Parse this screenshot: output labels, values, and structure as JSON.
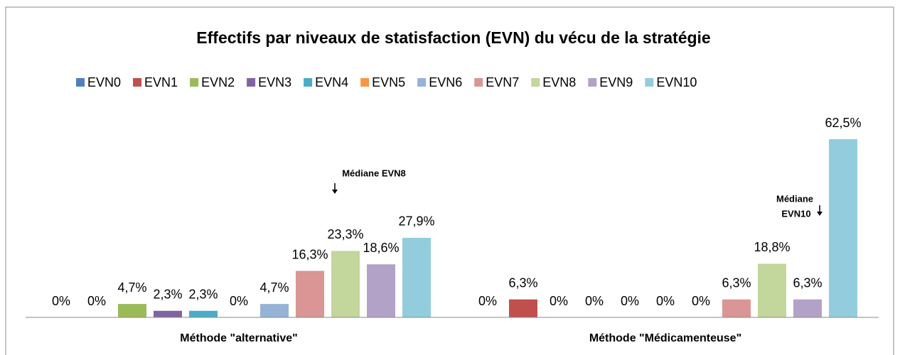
{
  "chart_data": {
    "type": "bar",
    "title": "Effectifs par niveaux de statisfaction (EVN) du vécu de la stratégie",
    "categories": [
      "Méthode \"alternative\"",
      "Méthode \"Médicamenteuse\""
    ],
    "series": [
      {
        "name": "EVN0",
        "color": "#4f81bd",
        "values": [
          0,
          0
        ],
        "value_labels": [
          "0%",
          "0%"
        ]
      },
      {
        "name": "EVN1",
        "color": "#c0504d",
        "values": [
          0,
          6.3
        ],
        "value_labels": [
          "0%",
          "6,3%"
        ]
      },
      {
        "name": "EVN2",
        "color": "#9bbb59",
        "values": [
          4.7,
          0
        ],
        "value_labels": [
          "4,7%",
          "0%"
        ]
      },
      {
        "name": "EVN3",
        "color": "#8064a2",
        "values": [
          2.3,
          0
        ],
        "value_labels": [
          "2,3%",
          "0%"
        ]
      },
      {
        "name": "EVN4",
        "color": "#4bacc6",
        "values": [
          2.3,
          0
        ],
        "value_labels": [
          "2,3%",
          "0%"
        ]
      },
      {
        "name": "EVN5",
        "color": "#f79646",
        "values": [
          0,
          0
        ],
        "value_labels": [
          "0%",
          "0%"
        ]
      },
      {
        "name": "EVN6",
        "color": "#95b3d7",
        "values": [
          4.7,
          0
        ],
        "value_labels": [
          "4,7%",
          "0%"
        ]
      },
      {
        "name": "EVN7",
        "color": "#d99694",
        "values": [
          16.3,
          6.3
        ],
        "value_labels": [
          "16,3%",
          "6,3%"
        ]
      },
      {
        "name": "EVN8",
        "color": "#c3d69b",
        "values": [
          23.3,
          18.8
        ],
        "value_labels": [
          "23,3%",
          "18,8%"
        ]
      },
      {
        "name": "EVN9",
        "color": "#b3a2c7",
        "values": [
          18.6,
          6.3
        ],
        "value_labels": [
          "18,6%",
          "6,3%"
        ]
      },
      {
        "name": "EVN10",
        "color": "#93cddd",
        "values": [
          27.9,
          62.5
        ],
        "value_labels": [
          "27,9%",
          "62,5%"
        ]
      }
    ],
    "annotations": [
      [
        "Médiane EVN8"
      ],
      [
        "Médiane",
        "EVN10"
      ]
    ],
    "legend": "top"
  }
}
